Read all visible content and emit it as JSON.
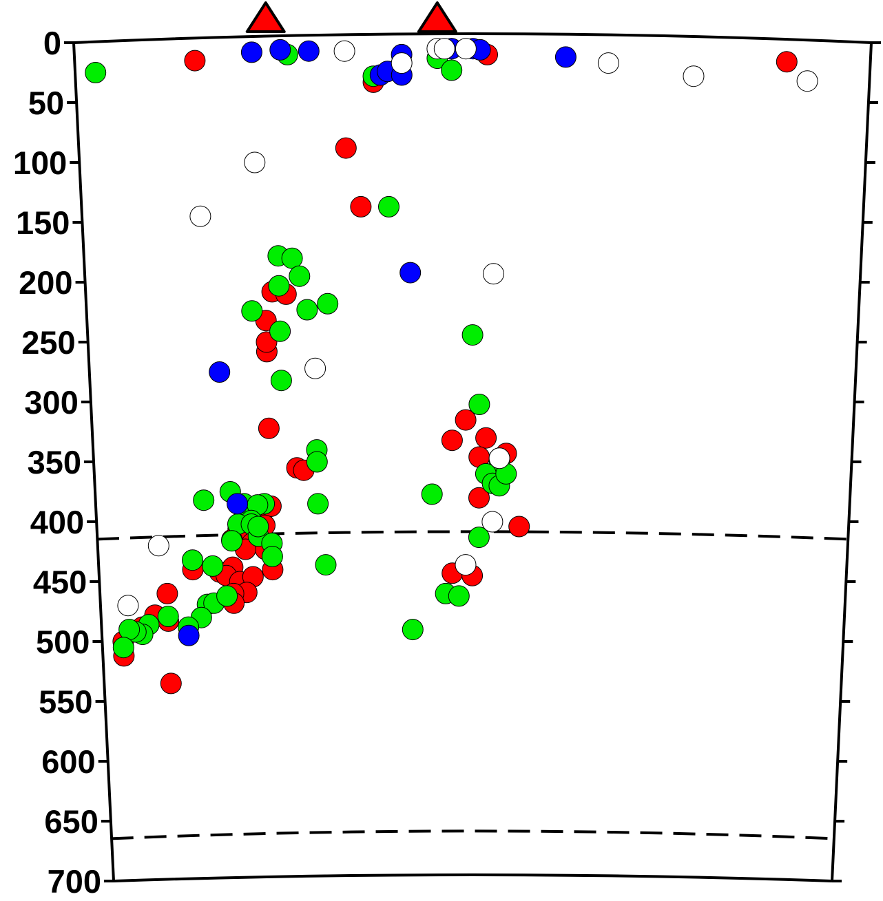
{
  "chart_data": {
    "type": "scatter",
    "title": "",
    "xlabel": "",
    "ylabel": "",
    "y_axis": {
      "ticks": [
        "0",
        "50",
        "100",
        "150",
        "200",
        "250",
        "300",
        "350",
        "400",
        "450",
        "500",
        "550",
        "600",
        "650",
        "700"
      ],
      "range": [
        0,
        700
      ],
      "direction": "downward (depth)"
    },
    "x_range": [
      0,
      1
    ],
    "grid": false,
    "legend": "none",
    "reference_lines": [
      {
        "depth": 410,
        "style": "dashed"
      },
      {
        "depth": 660,
        "style": "dashed"
      }
    ],
    "volcano_markers": [
      {
        "x": 0.23,
        "color": "#ff0000"
      },
      {
        "x": 0.47,
        "color": "#ff0000"
      }
    ],
    "series": [
      {
        "color": "#ff0000",
        "points": [
          [
            0.13,
            15
          ],
          [
            0.34,
            88
          ],
          [
            0.36,
            137
          ],
          [
            0.38,
            33
          ],
          [
            0.49,
            5
          ],
          [
            0.54,
            10
          ],
          [
            0.96,
            16
          ],
          [
            0.22,
            232
          ],
          [
            0.22,
            258
          ],
          [
            0.22,
            250
          ],
          [
            0.23,
            208
          ],
          [
            0.25,
            210
          ],
          [
            0.22,
            322
          ],
          [
            0.26,
            355
          ],
          [
            0.27,
            357
          ],
          [
            0.49,
            332
          ],
          [
            0.51,
            315
          ],
          [
            0.54,
            330
          ],
          [
            0.53,
            346
          ],
          [
            0.57,
            343
          ],
          [
            0.53,
            380
          ],
          [
            0.59,
            404
          ],
          [
            0.49,
            443
          ],
          [
            0.52,
            445
          ],
          [
            0.2,
            398
          ],
          [
            0.21,
            390
          ],
          [
            0.22,
            387
          ],
          [
            0.21,
            403
          ],
          [
            0.17,
            406
          ],
          [
            0.16,
            415
          ],
          [
            0.19,
            418
          ],
          [
            0.21,
            423
          ],
          [
            0.18,
            423
          ],
          [
            0.14,
            442
          ],
          [
            0.16,
            438
          ],
          [
            0.15,
            445
          ],
          [
            0.17,
            450
          ],
          [
            0.19,
            446
          ],
          [
            0.22,
            440
          ],
          [
            0.18,
            459
          ],
          [
            0.16,
            460
          ],
          [
            0.16,
            468
          ],
          [
            0.1,
            440
          ],
          [
            0.06,
            460
          ],
          [
            0.04,
            478
          ],
          [
            0.06,
            483
          ],
          [
            0.02,
            488
          ],
          [
            0.01,
            492
          ],
          [
            -0.01,
            500
          ],
          [
            -0.01,
            512
          ],
          [
            0.06,
            535
          ]
        ]
      },
      {
        "color": "#00ee00",
        "points": [
          [
            -0.01,
            25
          ],
          [
            0.26,
            10
          ],
          [
            0.38,
            28
          ],
          [
            0.47,
            13
          ],
          [
            0.49,
            23
          ],
          [
            0.4,
            137
          ],
          [
            0.24,
            178
          ],
          [
            0.26,
            180
          ],
          [
            0.27,
            195
          ],
          [
            0.24,
            203
          ],
          [
            0.31,
            218
          ],
          [
            0.28,
            223
          ],
          [
            0.2,
            224
          ],
          [
            0.24,
            241
          ],
          [
            0.24,
            282
          ],
          [
            0.52,
            244
          ],
          [
            0.53,
            302
          ],
          [
            0.29,
            340
          ],
          [
            0.29,
            350
          ],
          [
            0.29,
            385
          ],
          [
            0.3,
            436
          ],
          [
            0.56,
            347
          ],
          [
            0.56,
            350
          ],
          [
            0.54,
            360
          ],
          [
            0.55,
            368
          ],
          [
            0.56,
            370
          ],
          [
            0.57,
            360
          ],
          [
            0.46,
            377
          ],
          [
            0.53,
            413
          ],
          [
            0.48,
            460
          ],
          [
            0.5,
            462
          ],
          [
            0.43,
            490
          ],
          [
            0.12,
            382
          ],
          [
            0.16,
            375
          ],
          [
            0.18,
            385
          ],
          [
            0.18,
            391
          ],
          [
            0.21,
            385
          ],
          [
            0.2,
            386
          ],
          [
            0.19,
            399
          ],
          [
            0.17,
            402
          ],
          [
            0.19,
            402
          ],
          [
            0.2,
            412
          ],
          [
            0.2,
            404
          ],
          [
            0.16,
            416
          ],
          [
            0.22,
            418
          ],
          [
            0.22,
            429
          ],
          [
            0.1,
            432
          ],
          [
            0.13,
            437
          ],
          [
            0.12,
            469
          ],
          [
            0.13,
            468
          ],
          [
            0.15,
            462
          ],
          [
            0.11,
            480
          ],
          [
            0.06,
            479
          ],
          [
            0.03,
            486
          ],
          [
            0.02,
            494
          ],
          [
            0.01,
            492
          ],
          [
            0.0,
            490
          ],
          [
            -0.01,
            505
          ],
          [
            0.09,
            488
          ]
        ]
      },
      {
        "color": "#0000ff",
        "points": [
          [
            0.21,
            8
          ],
          [
            0.25,
            6
          ],
          [
            0.29,
            7
          ],
          [
            0.39,
            27
          ],
          [
            0.4,
            24
          ],
          [
            0.42,
            27
          ],
          [
            0.42,
            10
          ],
          [
            0.49,
            5
          ],
          [
            0.52,
            5
          ],
          [
            0.53,
            6
          ],
          [
            0.65,
            12
          ],
          [
            0.43,
            192
          ],
          [
            0.15,
            275
          ],
          [
            0.17,
            385
          ],
          [
            0.09,
            495
          ]
        ]
      },
      {
        "color": "#ffffff",
        "points": [
          [
            0.34,
            7
          ],
          [
            0.42,
            17
          ],
          [
            0.47,
            5
          ],
          [
            0.48,
            5
          ],
          [
            0.51,
            5
          ],
          [
            0.71,
            17
          ],
          [
            0.83,
            28
          ],
          [
            0.99,
            32
          ],
          [
            0.21,
            100
          ],
          [
            0.13,
            145
          ],
          [
            0.55,
            193
          ],
          [
            0.29,
            272
          ],
          [
            0.56,
            347
          ],
          [
            0.55,
            400
          ],
          [
            0.05,
            420
          ],
          [
            0.51,
            436
          ],
          [
            0.0,
            470
          ]
        ]
      }
    ]
  }
}
